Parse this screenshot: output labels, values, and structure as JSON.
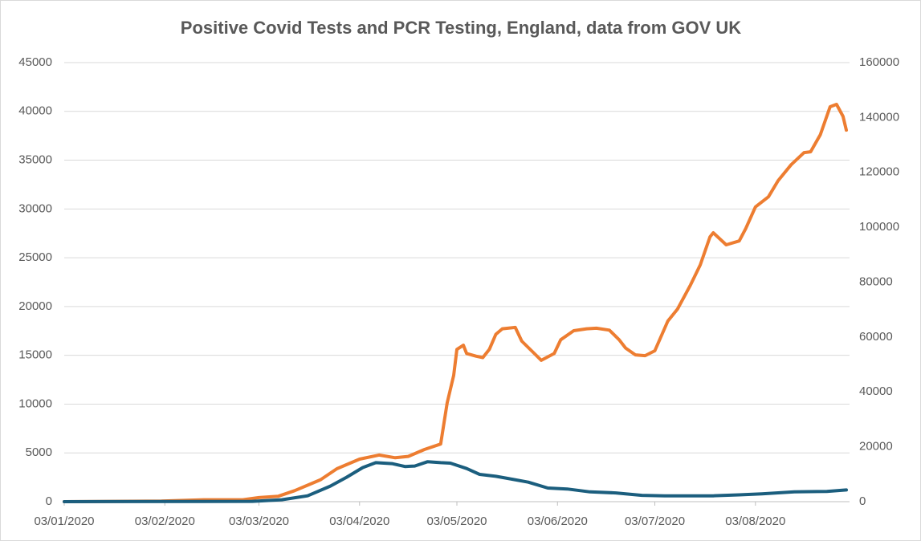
{
  "chart_data": {
    "type": "line",
    "title": "Positive Covid Tests and PCR Testing, England, data from GOV UK",
    "xlim": [
      "03/01/2020",
      "01/09/2020"
    ],
    "xticks": [
      "03/01/2020",
      "03/02/2020",
      "03/03/2020",
      "03/04/2020",
      "03/05/2020",
      "03/06/2020",
      "03/07/2020",
      "03/08/2020"
    ],
    "ylim": [
      0,
      45000
    ],
    "yticks": [
      0,
      5000,
      10000,
      15000,
      20000,
      25000,
      30000,
      35000,
      40000,
      45000
    ],
    "y2lim": [
      0,
      160000
    ],
    "y2ticks": [
      0,
      20000,
      40000,
      60000,
      80000,
      100000,
      120000,
      140000,
      160000
    ],
    "grid": true,
    "series": [
      {
        "color": "#ed7d31",
        "axis": "y2",
        "x": [
          "03/01/2020",
          "02/02/2020",
          "15/02/2020",
          "27/02/2020",
          "03/03/2020",
          "09/03/2020",
          "14/03/2020",
          "18/03/2020",
          "22/03/2020",
          "27/03/2020",
          "03/04/2020",
          "09/04/2020",
          "14/04/2020",
          "18/04/2020",
          "23/04/2020",
          "28/04/2020",
          "30/04/2020",
          "02/05/2020",
          "03/05/2020",
          "05/05/2020",
          "06/05/2020",
          "09/05/2020",
          "11/05/2020",
          "13/05/2020",
          "15/05/2020",
          "17/05/2020",
          "21/05/2020",
          "23/05/2020",
          "26/05/2020",
          "29/05/2020",
          "02/06/2020",
          "04/06/2020",
          "08/06/2020",
          "12/06/2020",
          "15/06/2020",
          "19/06/2020",
          "22/06/2020",
          "24/06/2020",
          "27/06/2020",
          "30/06/2020",
          "03/07/2020",
          "07/07/2020",
          "10/07/2020",
          "14/07/2020",
          "17/07/2020",
          "20/07/2020",
          "21/07/2020",
          "25/07/2020",
          "29/07/2020",
          "31/07/2020",
          "03/08/2020",
          "07/08/2020",
          "10/08/2020",
          "14/08/2020",
          "18/08/2020",
          "20/08/2020",
          "23/08/2020",
          "26/08/2020",
          "28/08/2020",
          "30/08/2020",
          "31/08/2020"
        ],
        "values": [
          0,
          200,
          700,
          700,
          1500,
          2000,
          4000,
          6000,
          8000,
          12000,
          15500,
          17000,
          16000,
          16500,
          19000,
          21000,
          36000,
          46000,
          55500,
          57000,
          54000,
          53000,
          52500,
          55500,
          61000,
          63000,
          63500,
          58500,
          55000,
          51500,
          54000,
          59000,
          62300,
          63000,
          63200,
          62500,
          59000,
          56000,
          53500,
          53200,
          55000,
          65800,
          70200,
          79000,
          86300,
          96500,
          98000,
          93600,
          95000,
          99500,
          107400,
          111100,
          117000,
          122800,
          127200,
          127500,
          133700,
          143900,
          144800,
          140400,
          135400
        ]
      },
      {
        "color": "#1b5e7e",
        "x": [
          "03/01/2020",
          "01/03/2020",
          "10/03/2020",
          "18/03/2020",
          "25/03/2020",
          "30/03/2020",
          "04/04/2020",
          "08/04/2020",
          "13/04/2020",
          "17/04/2020",
          "20/04/2020",
          "24/04/2020",
          "28/04/2020",
          "01/05/2020",
          "06/05/2020",
          "10/05/2020",
          "15/05/2020",
          "20/05/2020",
          "25/05/2020",
          "31/05/2020",
          "06/06/2020",
          "13/06/2020",
          "21/06/2020",
          "29/06/2020",
          "06/07/2020",
          "21/07/2020",
          "29/07/2020",
          "05/08/2020",
          "15/08/2020",
          "25/08/2020",
          "31/08/2020"
        ],
        "values": [
          0,
          30,
          200,
          600,
          1600,
          2500,
          3500,
          4000,
          3900,
          3600,
          3650,
          4100,
          4000,
          3950,
          3400,
          2800,
          2600,
          2300,
          2000,
          1400,
          1300,
          1000,
          900,
          650,
          600,
          600,
          700,
          800,
          1000,
          1050,
          1200
        ]
      }
    ]
  }
}
